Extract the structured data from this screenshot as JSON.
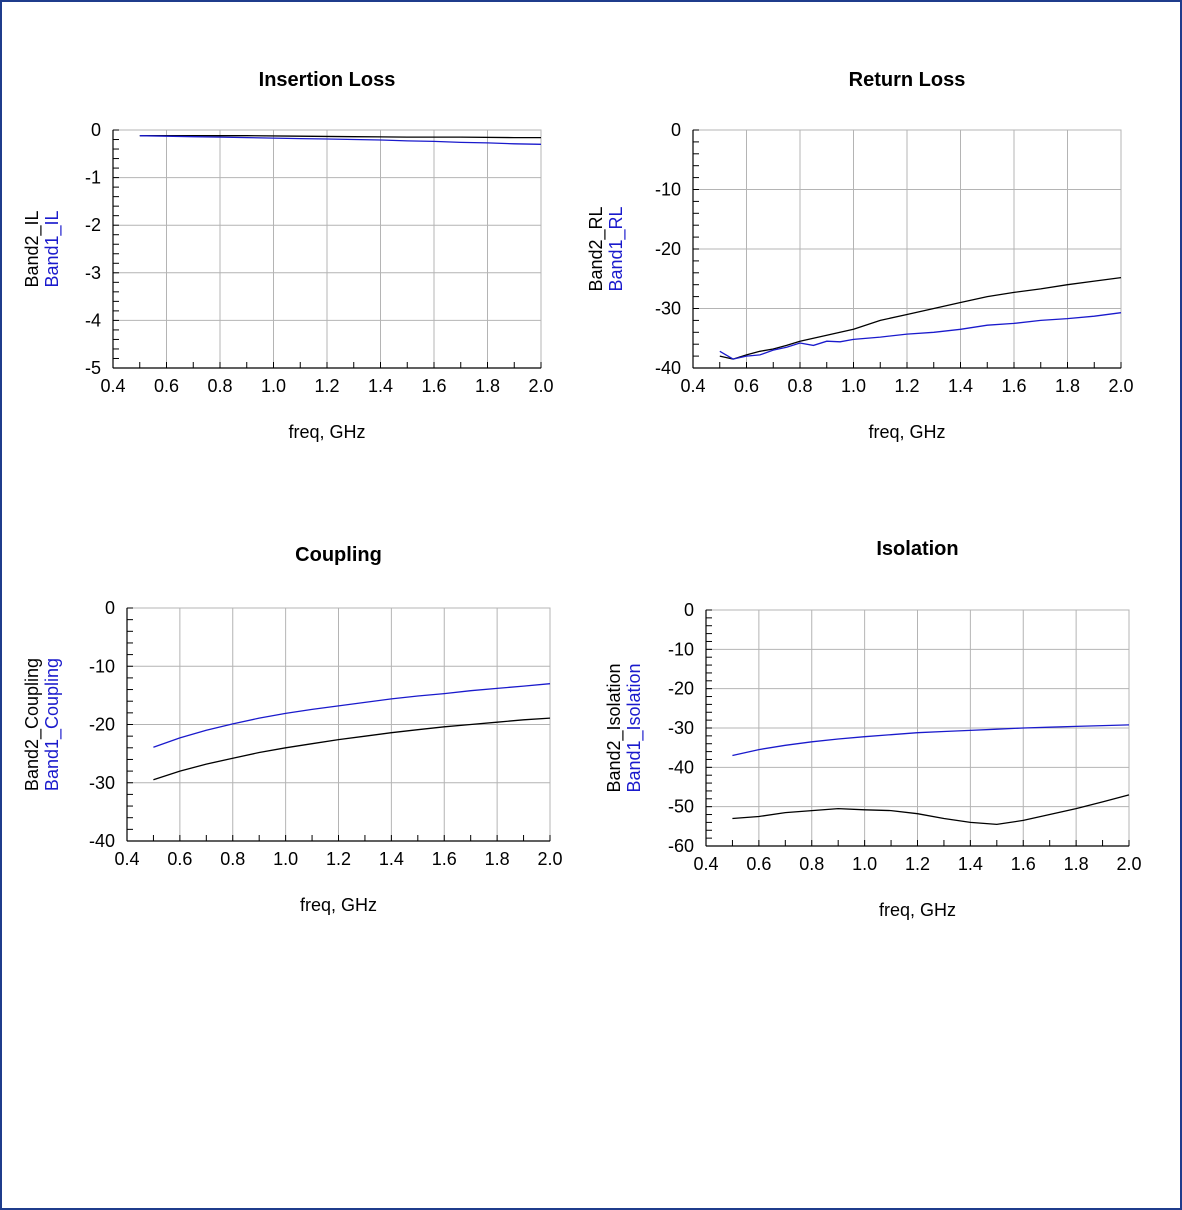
{
  "colors": {
    "band1": "#1a1acc",
    "band2": "#000000",
    "grid": "#b4b4b4",
    "frame": "#1f3c8c"
  },
  "chart_data": [
    {
      "type": "line",
      "title": "Insertion Loss",
      "xlabel": "freq, GHz",
      "ylabels": [
        "Band2_IL",
        "Band1_IL"
      ],
      "xlim": [
        0.4,
        2.0
      ],
      "ylim": [
        -5,
        0
      ],
      "xticks": [
        0.4,
        0.6,
        0.8,
        1.0,
        1.2,
        1.4,
        1.6,
        1.8,
        2.0
      ],
      "xtick_labels": [
        "0.4",
        "0.6",
        "0.8",
        "1.0",
        "1.2",
        "1.4",
        "1.6",
        "1.8",
        "2.0"
      ],
      "yticks": [
        0,
        -1,
        -2,
        -3,
        -4,
        -5
      ],
      "ytick_labels": [
        "0",
        "-1",
        "-2",
        "-3",
        "-4",
        "-5"
      ],
      "grid": true,
      "series": [
        {
          "color": "#000000",
          "x": [
            0.5,
            0.7,
            0.9,
            1.1,
            1.3,
            1.5,
            1.7,
            1.9,
            2.0
          ],
          "y": [
            -0.12,
            -0.12,
            -0.12,
            -0.13,
            -0.14,
            -0.15,
            -0.15,
            -0.16,
            -0.16
          ]
        },
        {
          "color": "#1a1acc",
          "x": [
            0.5,
            0.6,
            0.7,
            0.8,
            0.9,
            1.0,
            1.1,
            1.2,
            1.3,
            1.4,
            1.5,
            1.6,
            1.7,
            1.8,
            1.9,
            2.0
          ],
          "y": [
            -0.12,
            -0.13,
            -0.14,
            -0.15,
            -0.16,
            -0.17,
            -0.18,
            -0.19,
            -0.2,
            -0.21,
            -0.23,
            -0.24,
            -0.26,
            -0.27,
            -0.29,
            -0.3
          ]
        }
      ]
    },
    {
      "type": "line",
      "title": "Return Loss",
      "xlabel": "freq, GHz",
      "ylabels": [
        "Band2_RL",
        "Band1_RL"
      ],
      "xlim": [
        0.4,
        2.0
      ],
      "ylim": [
        -40,
        0
      ],
      "xticks": [
        0.4,
        0.6,
        0.8,
        1.0,
        1.2,
        1.4,
        1.6,
        1.8,
        2.0
      ],
      "xtick_labels": [
        "0.4",
        "0.6",
        "0.8",
        "1.0",
        "1.2",
        "1.4",
        "1.6",
        "1.8",
        "2.0"
      ],
      "yticks": [
        0,
        -10,
        -20,
        -30,
        -40
      ],
      "ytick_labels": [
        "0",
        "-10",
        "-20",
        "-30",
        "-40"
      ],
      "grid": true,
      "series": [
        {
          "color": "#000000",
          "x": [
            0.5,
            0.55,
            0.6,
            0.65,
            0.7,
            0.75,
            0.8,
            0.85,
            0.9,
            0.95,
            1.0,
            1.1,
            1.2,
            1.3,
            1.4,
            1.5,
            1.6,
            1.7,
            1.8,
            1.9,
            2.0
          ],
          "y": [
            -38.0,
            -38.5,
            -37.8,
            -37.2,
            -36.8,
            -36.2,
            -35.5,
            -35.0,
            -34.5,
            -34.0,
            -33.5,
            -32.0,
            -31.0,
            -30.0,
            -29.0,
            -28.0,
            -27.3,
            -26.7,
            -26.0,
            -25.4,
            -24.8
          ]
        },
        {
          "color": "#1a1acc",
          "x": [
            0.5,
            0.55,
            0.6,
            0.65,
            0.7,
            0.75,
            0.8,
            0.85,
            0.9,
            0.95,
            1.0,
            1.1,
            1.2,
            1.3,
            1.4,
            1.5,
            1.6,
            1.7,
            1.8,
            1.9,
            2.0
          ],
          "y": [
            -37.2,
            -38.5,
            -38.0,
            -37.8,
            -37.0,
            -36.5,
            -35.8,
            -36.2,
            -35.5,
            -35.6,
            -35.2,
            -34.8,
            -34.3,
            -34.0,
            -33.5,
            -32.8,
            -32.5,
            -32.0,
            -31.7,
            -31.3,
            -30.7
          ]
        }
      ]
    },
    {
      "type": "line",
      "title": "Coupling",
      "xlabel": "freq, GHz",
      "ylabels": [
        "Band2_Coupling",
        "Band1_Coupling"
      ],
      "xlim": [
        0.4,
        2.0
      ],
      "ylim": [
        -40,
        0
      ],
      "xticks": [
        0.4,
        0.6,
        0.8,
        1.0,
        1.2,
        1.4,
        1.6,
        1.8,
        2.0
      ],
      "xtick_labels": [
        "0.4",
        "0.6",
        "0.8",
        "1.0",
        "1.2",
        "1.4",
        "1.6",
        "1.8",
        "2.0"
      ],
      "yticks": [
        0,
        -10,
        -20,
        -30,
        -40
      ],
      "ytick_labels": [
        "0",
        "-10",
        "-20",
        "-30",
        "-40"
      ],
      "grid": true,
      "series": [
        {
          "color": "#000000",
          "x": [
            0.5,
            0.6,
            0.7,
            0.8,
            0.9,
            1.0,
            1.1,
            1.2,
            1.3,
            1.4,
            1.5,
            1.6,
            1.7,
            1.8,
            1.9,
            2.0
          ],
          "y": [
            -29.5,
            -28.0,
            -26.8,
            -25.8,
            -24.8,
            -24.0,
            -23.3,
            -22.6,
            -22.0,
            -21.4,
            -20.9,
            -20.4,
            -20.0,
            -19.6,
            -19.2,
            -18.9
          ]
        },
        {
          "color": "#1a1acc",
          "x": [
            0.5,
            0.6,
            0.7,
            0.8,
            0.9,
            1.0,
            1.1,
            1.2,
            1.3,
            1.4,
            1.5,
            1.6,
            1.7,
            1.8,
            1.9,
            2.0
          ],
          "y": [
            -23.9,
            -22.3,
            -21.0,
            -19.9,
            -18.9,
            -18.1,
            -17.4,
            -16.8,
            -16.2,
            -15.6,
            -15.1,
            -14.7,
            -14.2,
            -13.8,
            -13.4,
            -13.0
          ]
        }
      ]
    },
    {
      "type": "line",
      "title": "Isolation",
      "xlabel": "freq, GHz",
      "ylabels": [
        "Band2_Isolation",
        "Band1_Isolation"
      ],
      "xlim": [
        0.4,
        2.0
      ],
      "ylim": [
        -60,
        0
      ],
      "xticks": [
        0.4,
        0.6,
        0.8,
        1.0,
        1.2,
        1.4,
        1.6,
        1.8,
        2.0
      ],
      "xtick_labels": [
        "0.4",
        "0.6",
        "0.8",
        "1.0",
        "1.2",
        "1.4",
        "1.6",
        "1.8",
        "2.0"
      ],
      "yticks": [
        0,
        -10,
        -20,
        -30,
        -40,
        -50,
        -60
      ],
      "ytick_labels": [
        "0",
        "-10",
        "-20",
        "-30",
        "-40",
        "-50",
        "-60"
      ],
      "grid": true,
      "series": [
        {
          "color": "#000000",
          "x": [
            0.5,
            0.6,
            0.7,
            0.8,
            0.9,
            1.0,
            1.1,
            1.2,
            1.3,
            1.4,
            1.5,
            1.6,
            1.7,
            1.8,
            1.9,
            2.0
          ],
          "y": [
            -53.0,
            -52.5,
            -51.5,
            -51.0,
            -50.5,
            -50.8,
            -51.0,
            -51.8,
            -53.0,
            -54.0,
            -54.5,
            -53.5,
            -52.0,
            -50.5,
            -48.8,
            -47.0
          ]
        },
        {
          "color": "#1a1acc",
          "x": [
            0.5,
            0.6,
            0.7,
            0.8,
            0.9,
            1.0,
            1.1,
            1.2,
            1.3,
            1.4,
            1.5,
            1.6,
            1.7,
            1.8,
            1.9,
            2.0
          ],
          "y": [
            -37.0,
            -35.5,
            -34.4,
            -33.5,
            -32.8,
            -32.2,
            -31.7,
            -31.2,
            -30.9,
            -30.6,
            -30.3,
            -30.0,
            -29.8,
            -29.6,
            -29.4,
            -29.2
          ]
        }
      ]
    }
  ]
}
